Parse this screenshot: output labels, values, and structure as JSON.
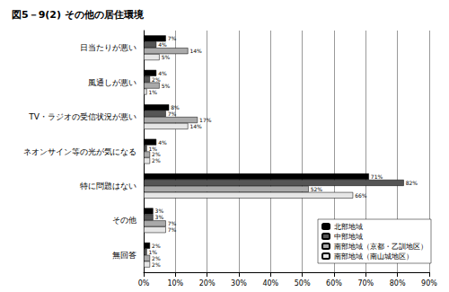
{
  "chart_data": {
    "type": "bar",
    "title": "図5－9(2) その他の居住環境",
    "orientation": "horizontal",
    "categories": [
      "日当たりが悪い",
      "風通しが悪い",
      "TV・ラジオの受信状況が悪い",
      "ネオンサイン等の光が気になる",
      "特に問題はない",
      "その他",
      "無回答"
    ],
    "series": [
      {
        "name": "北部地域",
        "color": "#000000",
        "values": [
          7,
          4,
          8,
          4,
          71,
          3,
          2
        ],
        "value_labels": [
          "7%",
          "4%",
          "8%",
          "4%",
          "71%",
          "3%",
          "2%"
        ]
      },
      {
        "name": "中部地域",
        "color": "#555555",
        "values": [
          4,
          2,
          7,
          1,
          82,
          3,
          1
        ],
        "value_labels": [
          "4%",
          "2%",
          "7%",
          "1%",
          "82%",
          "3%",
          "1%"
        ]
      },
      {
        "name": "南部地域（京都・乙訓地区）",
        "color": "#aaaaaa",
        "values": [
          14,
          5,
          17,
          2,
          52,
          7,
          2
        ],
        "value_labels": [
          "14%",
          "5%",
          "17%",
          "2%",
          "52%",
          "7%",
          "2%"
        ]
      },
      {
        "name": "南部地域（南山城地区）",
        "color": "#e6e6e6",
        "values": [
          5,
          1,
          14,
          2,
          66,
          7,
          2
        ],
        "value_labels": [
          "5%",
          "1%",
          "14%",
          "2%",
          "66%",
          "7%",
          "2%"
        ]
      }
    ],
    "xlim": [
      0,
      90
    ],
    "xticks": [
      {
        "value": 0,
        "label": "0%"
      },
      {
        "value": 10,
        "label": "10%"
      },
      {
        "value": 20,
        "label": "20%"
      },
      {
        "value": 30,
        "label": "30%"
      },
      {
        "value": 40,
        "label": "40%"
      },
      {
        "value": 50,
        "label": "50%"
      },
      {
        "value": 60,
        "label": "60%"
      },
      {
        "value": 70,
        "label": "70%"
      },
      {
        "value": 80,
        "label": "80%"
      },
      {
        "value": 90,
        "label": "90%"
      }
    ],
    "grid": true,
    "legend": "lower right",
    "data_labels": true
  }
}
